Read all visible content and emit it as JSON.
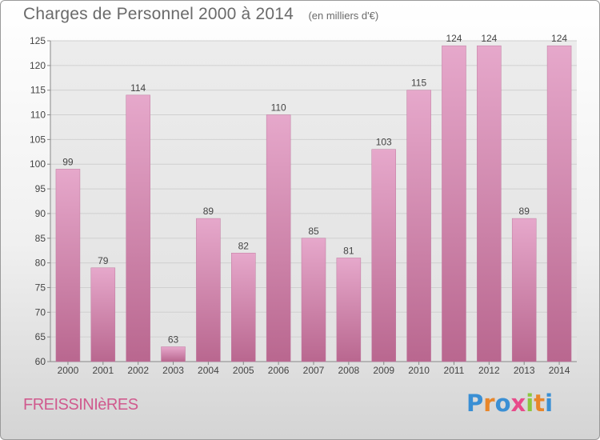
{
  "header": {
    "title": "Charges de Personnel 2000 à 2014",
    "subtitle": "(en milliers d'€)"
  },
  "footer": {
    "commune": "FREISSINIèRES",
    "logo_text": "Proxiti",
    "logo_colors": [
      "#3a8fd4",
      "#e8862a",
      "#3a8fd4",
      "#e84a8a",
      "#8cc63f",
      "#e8862a",
      "#3a8fd4"
    ]
  },
  "chart_data": {
    "type": "bar",
    "title": "Charges de Personnel 2000 à 2014",
    "subtitle": "(en milliers d'€)",
    "xlabel": "",
    "ylabel": "",
    "categories": [
      "2000",
      "2001",
      "2002",
      "2003",
      "2004",
      "2005",
      "2006",
      "2007",
      "2008",
      "2009",
      "2010",
      "2011",
      "2012",
      "2013",
      "2014"
    ],
    "values": [
      99,
      79,
      114,
      63,
      89,
      82,
      110,
      85,
      81,
      103,
      115,
      124,
      124,
      89,
      124
    ],
    "ylim": [
      60,
      125
    ],
    "yticks": [
      60,
      65,
      70,
      75,
      80,
      85,
      90,
      95,
      100,
      105,
      110,
      115,
      120,
      125
    ],
    "grid": true,
    "legend": "none",
    "colors": {
      "bar": "#d98fb8",
      "bar_top": "#e6a8cb",
      "bar_bottom": "#b9678f",
      "grid": "#d0d0d0",
      "axis_text": "#444444",
      "label_text": "#444444"
    }
  }
}
